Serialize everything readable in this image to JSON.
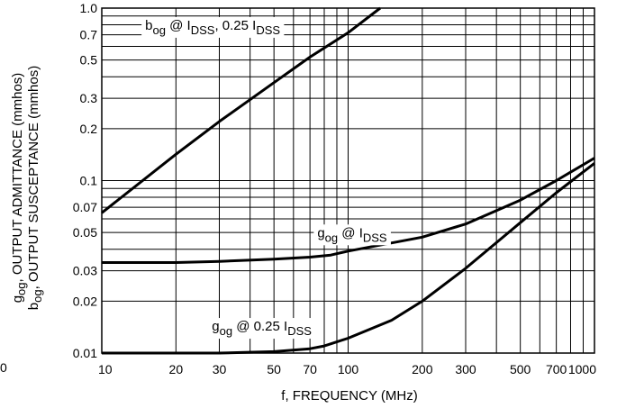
{
  "chart_data": {
    "type": "line",
    "x_scale": "log",
    "y_scale": "log",
    "xlim": [
      10,
      1000
    ],
    "ylim": [
      0.01,
      1.0
    ],
    "grid": true,
    "xlabel": "f, FREQUENCY (MHz)",
    "ylabel_line1": {
      "sym": "g",
      "sub": "og",
      "rest": ", OUTPUT ADMITTANCE (mmhos)"
    },
    "ylabel_line2": {
      "sym": "b",
      "sub": "og",
      "rest": ", OUTPUT SUSCEPTANCE (mmhos)"
    },
    "x_ticks": [
      {
        "v": 10,
        "label": "10"
      },
      {
        "v": 20,
        "label": "20"
      },
      {
        "v": 30,
        "label": "30"
      },
      {
        "v": 50,
        "label": "50"
      },
      {
        "v": 70,
        "label": "70"
      },
      {
        "v": 100,
        "label": "100"
      },
      {
        "v": 200,
        "label": "200"
      },
      {
        "v": 300,
        "label": "300"
      },
      {
        "v": 500,
        "label": "500"
      },
      {
        "v": 700,
        "label": "700"
      },
      {
        "v": 1000,
        "label": "1000"
      }
    ],
    "y_ticks": [
      {
        "v": 0.01,
        "label": "0.01"
      },
      {
        "v": 0.02,
        "label": "0.02"
      },
      {
        "v": 0.03,
        "label": "0.03"
      },
      {
        "v": 0.05,
        "label": "0.05"
      },
      {
        "v": 0.07,
        "label": "0.07"
      },
      {
        "v": 0.1,
        "label": "0.1"
      },
      {
        "v": 0.2,
        "label": "0.2"
      },
      {
        "v": 0.3,
        "label": "0.3"
      },
      {
        "v": 0.5,
        "label": "0.5"
      },
      {
        "v": 0.7,
        "label": "0.7"
      },
      {
        "v": 1.0,
        "label": "1.0"
      }
    ],
    "stray_left_label": "0",
    "series": [
      {
        "key": "bog",
        "points": [
          [
            10,
            0.065
          ],
          [
            20,
            0.142
          ],
          [
            30,
            0.22
          ],
          [
            50,
            0.37
          ],
          [
            70,
            0.52
          ],
          [
            100,
            0.72
          ],
          [
            135,
            1.0
          ]
        ],
        "annotation": {
          "sym": "b",
          "sub": "og",
          "mid": " @ I",
          "sub2": "DSS",
          "mid2": ", 0.25 I",
          "sub3": "DSS",
          "at": [
            15,
            0.75
          ]
        }
      },
      {
        "key": "gog_idss",
        "points": [
          [
            10,
            0.0335
          ],
          [
            20,
            0.0335
          ],
          [
            30,
            0.034
          ],
          [
            50,
            0.035
          ],
          [
            70,
            0.036
          ],
          [
            85,
            0.037
          ],
          [
            100,
            0.039
          ],
          [
            200,
            0.047
          ],
          [
            300,
            0.056
          ],
          [
            500,
            0.077
          ],
          [
            700,
            0.1
          ],
          [
            1000,
            0.135
          ]
        ],
        "annotation": {
          "sym": "g",
          "sub": "og",
          "mid": " @ I",
          "sub2": "DSS",
          "mid2": "",
          "sub3": "",
          "at": [
            75,
            0.047
          ]
        }
      },
      {
        "key": "gog_025",
        "points": [
          [
            10,
            0.01
          ],
          [
            20,
            0.01
          ],
          [
            30,
            0.01
          ],
          [
            50,
            0.0102
          ],
          [
            70,
            0.0106
          ],
          [
            80,
            0.011
          ],
          [
            100,
            0.0122
          ],
          [
            150,
            0.0155
          ],
          [
            200,
            0.02
          ],
          [
            300,
            0.031
          ],
          [
            500,
            0.057
          ],
          [
            700,
            0.085
          ],
          [
            1000,
            0.126
          ]
        ],
        "annotation": {
          "sym": "g",
          "sub": "og",
          "mid": " @ 0.25 I",
          "sub2": "DSS",
          "mid2": "",
          "sub3": "",
          "at": [
            28,
            0.0135
          ]
        }
      }
    ]
  }
}
